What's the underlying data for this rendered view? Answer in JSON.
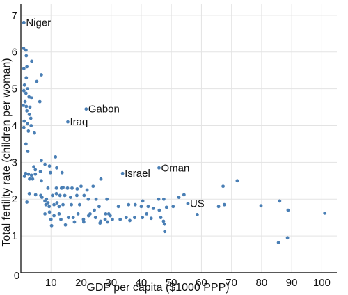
{
  "chart_data": {
    "type": "scatter",
    "title": "",
    "xlabel": "GDP per capita ($1000 PPP)",
    "ylabel": "Total fertility rate (children per woman)",
    "xlim": [
      0,
      105
    ],
    "ylim": [
      0,
      7.3
    ],
    "x_ticks": [
      10,
      20,
      30,
      40,
      50,
      60,
      70,
      80,
      90,
      100
    ],
    "y_ticks": [
      1,
      2,
      3,
      4,
      5,
      6,
      7
    ],
    "origin_label": "0",
    "grid": true,
    "point_color": "#4a7fb5",
    "annotations": [
      {
        "label": "Niger",
        "x": 1.0,
        "y": 6.8
      },
      {
        "label": "Gabon",
        "x": 21.7,
        "y": 4.45
      },
      {
        "label": "Iraq",
        "x": 15.6,
        "y": 4.1
      },
      {
        "label": "Israel",
        "x": 33.8,
        "y": 2.7
      },
      {
        "label": "Oman",
        "x": 45.9,
        "y": 2.85
      },
      {
        "label": "US",
        "x": 55.5,
        "y": 1.88
      }
    ],
    "points": [
      [
        1.0,
        6.8
      ],
      [
        0.9,
        6.1
      ],
      [
        1.7,
        6.05
      ],
      [
        1.8,
        5.9
      ],
      [
        3.6,
        5.75
      ],
      [
        2.0,
        5.6
      ],
      [
        1.0,
        5.55
      ],
      [
        6.8,
        5.38
      ],
      [
        1.8,
        5.3
      ],
      [
        5.3,
        5.2
      ],
      [
        1.2,
        5.1
      ],
      [
        2.2,
        5.0
      ],
      [
        1.0,
        4.95
      ],
      [
        1.7,
        4.88
      ],
      [
        2.7,
        4.78
      ],
      [
        3.6,
        4.75
      ],
      [
        1.4,
        4.65
      ],
      [
        6.3,
        4.65
      ],
      [
        0.8,
        4.55
      ],
      [
        1.8,
        4.52
      ],
      [
        3.0,
        4.5
      ],
      [
        2.0,
        4.4
      ],
      [
        2.8,
        4.3
      ],
      [
        3.3,
        4.2
      ],
      [
        1.1,
        4.12
      ],
      [
        2.2,
        4.05
      ],
      [
        3.4,
        4.0
      ],
      [
        1.0,
        3.95
      ],
      [
        2.5,
        3.85
      ],
      [
        4.5,
        3.8
      ],
      [
        1.7,
        3.5
      ],
      [
        2.3,
        3.3
      ],
      [
        11.5,
        3.15
      ],
      [
        6.8,
        3.05
      ],
      [
        8.0,
        2.95
      ],
      [
        9.5,
        2.9
      ],
      [
        4.3,
        2.88
      ],
      [
        11.9,
        2.85
      ],
      [
        4.8,
        2.8
      ],
      [
        6.5,
        2.75
      ],
      [
        9.8,
        2.72
      ],
      [
        13.7,
        2.72
      ],
      [
        1.6,
        2.7
      ],
      [
        2.5,
        2.68
      ],
      [
        3.5,
        2.65
      ],
      [
        4.8,
        2.68
      ],
      [
        1.2,
        2.62
      ],
      [
        2.9,
        2.55
      ],
      [
        3.9,
        2.55
      ],
      [
        6.8,
        2.5
      ],
      [
        26.6,
        2.55
      ],
      [
        9.0,
        2.3
      ],
      [
        11.8,
        2.3
      ],
      [
        13.5,
        2.3
      ],
      [
        15.5,
        2.3
      ],
      [
        17.0,
        2.3
      ],
      [
        20.0,
        2.35
      ],
      [
        22.0,
        2.25
      ],
      [
        24.0,
        2.35
      ],
      [
        2.8,
        2.15
      ],
      [
        4.9,
        2.12
      ],
      [
        6.6,
        2.1
      ],
      [
        7.0,
        2.05
      ],
      [
        8.5,
        2.0
      ],
      [
        10.5,
        2.1
      ],
      [
        11.8,
        2.15
      ],
      [
        13.0,
        2.1
      ],
      [
        14.6,
        2.1
      ],
      [
        16.5,
        2.05
      ],
      [
        18.6,
        2.1
      ],
      [
        21.0,
        2.1
      ],
      [
        22.4,
        2.0
      ],
      [
        25.0,
        2.0
      ],
      [
        28.6,
        2.0
      ],
      [
        8.0,
        1.95
      ],
      [
        2.0,
        1.92
      ],
      [
        9.0,
        1.9
      ],
      [
        12.0,
        1.9
      ],
      [
        8.3,
        1.85
      ],
      [
        11.0,
        1.85
      ],
      [
        14.0,
        1.85
      ],
      [
        16.8,
        1.85
      ],
      [
        9.4,
        1.8
      ],
      [
        12.7,
        1.8
      ],
      [
        19.5,
        1.85
      ],
      [
        24.4,
        1.7
      ],
      [
        26.0,
        1.8
      ],
      [
        32.4,
        1.8
      ],
      [
        35.8,
        1.85
      ],
      [
        38.0,
        1.85
      ],
      [
        40.5,
        1.95
      ],
      [
        40.0,
        1.8
      ],
      [
        42.3,
        1.8
      ],
      [
        44.0,
        1.75
      ],
      [
        45.8,
        2.0
      ],
      [
        47.5,
        2.0
      ],
      [
        46.0,
        1.7
      ],
      [
        48.4,
        1.78
      ],
      [
        50.6,
        1.8
      ],
      [
        52.5,
        2.05
      ],
      [
        54.2,
        2.12
      ],
      [
        65.7,
        1.8
      ],
      [
        67.6,
        1.85
      ],
      [
        67.2,
        2.35
      ],
      [
        71.9,
        2.5
      ],
      [
        79.8,
        1.82
      ],
      [
        86.0,
        1.95
      ],
      [
        88.8,
        1.7
      ],
      [
        101.0,
        1.62
      ],
      [
        8.0,
        1.6
      ],
      [
        9.5,
        1.65
      ],
      [
        11.0,
        1.55
      ],
      [
        12.7,
        1.6
      ],
      [
        13.3,
        1.45
      ],
      [
        15.8,
        1.5
      ],
      [
        17.4,
        1.5
      ],
      [
        19.0,
        1.6
      ],
      [
        20.8,
        1.45
      ],
      [
        22.5,
        1.55
      ],
      [
        23.0,
        1.6
      ],
      [
        24.8,
        1.5
      ],
      [
        26.5,
        1.4
      ],
      [
        28.0,
        1.45
      ],
      [
        28.2,
        1.6
      ],
      [
        29.2,
        1.6
      ],
      [
        29.7,
        1.55
      ],
      [
        30.4,
        1.45
      ],
      [
        33.0,
        1.45
      ],
      [
        35.0,
        1.5
      ],
      [
        36.2,
        1.42
      ],
      [
        37.8,
        1.5
      ],
      [
        40.4,
        1.5
      ],
      [
        41.8,
        1.6
      ],
      [
        43.3,
        1.48
      ],
      [
        46.5,
        1.5
      ],
      [
        47.4,
        1.4
      ],
      [
        47.8,
        1.12
      ],
      [
        47.7,
        1.32
      ],
      [
        58.6,
        1.58
      ],
      [
        10.0,
        1.45
      ],
      [
        10.2,
        1.28
      ],
      [
        14.8,
        1.3
      ],
      [
        26.3,
        1.35
      ],
      [
        28.8,
        1.38
      ],
      [
        85.6,
        0.82
      ],
      [
        88.6,
        0.95
      ],
      [
        20.9,
        1.38
      ],
      [
        17.8,
        1.38
      ],
      [
        14.0,
        2.32
      ],
      [
        18.7,
        2.28
      ]
    ]
  }
}
